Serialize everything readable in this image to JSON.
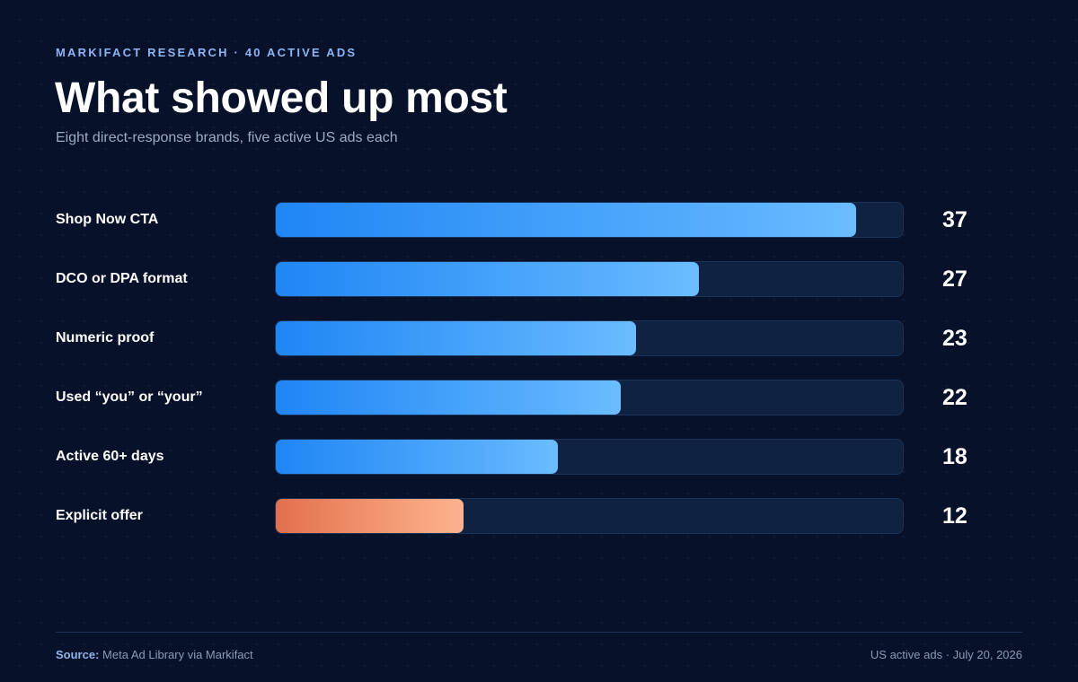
{
  "header": {
    "eyebrow": "MARKIFACT RESEARCH · 40 ACTIVE ADS",
    "title": "What showed up most",
    "subtitle": "Eight direct-response brands, five active US ads each"
  },
  "chart_data": {
    "type": "bar",
    "orientation": "horizontal",
    "title": "What showed up most",
    "subtitle": "Eight direct-response brands, five active US ads each",
    "xlim": [
      0,
      40
    ],
    "grid": false,
    "data_labels": true,
    "categories": [
      "Shop Now CTA",
      "DCO or DPA format",
      "Numeric proof",
      "Used “you” or “your”",
      "Active 60+ days",
      "Explicit offer"
    ],
    "values": [
      37,
      27,
      23,
      22,
      18,
      12
    ],
    "highlight_category": "Explicit offer",
    "colors": {
      "primary": "#2f95fa",
      "highlight": "#f0906b",
      "track": "#102241"
    }
  },
  "footer": {
    "source_label": "Source:",
    "source_text": "Meta Ad Library via Markifact",
    "meta": "US active ads · July 20, 2026"
  }
}
